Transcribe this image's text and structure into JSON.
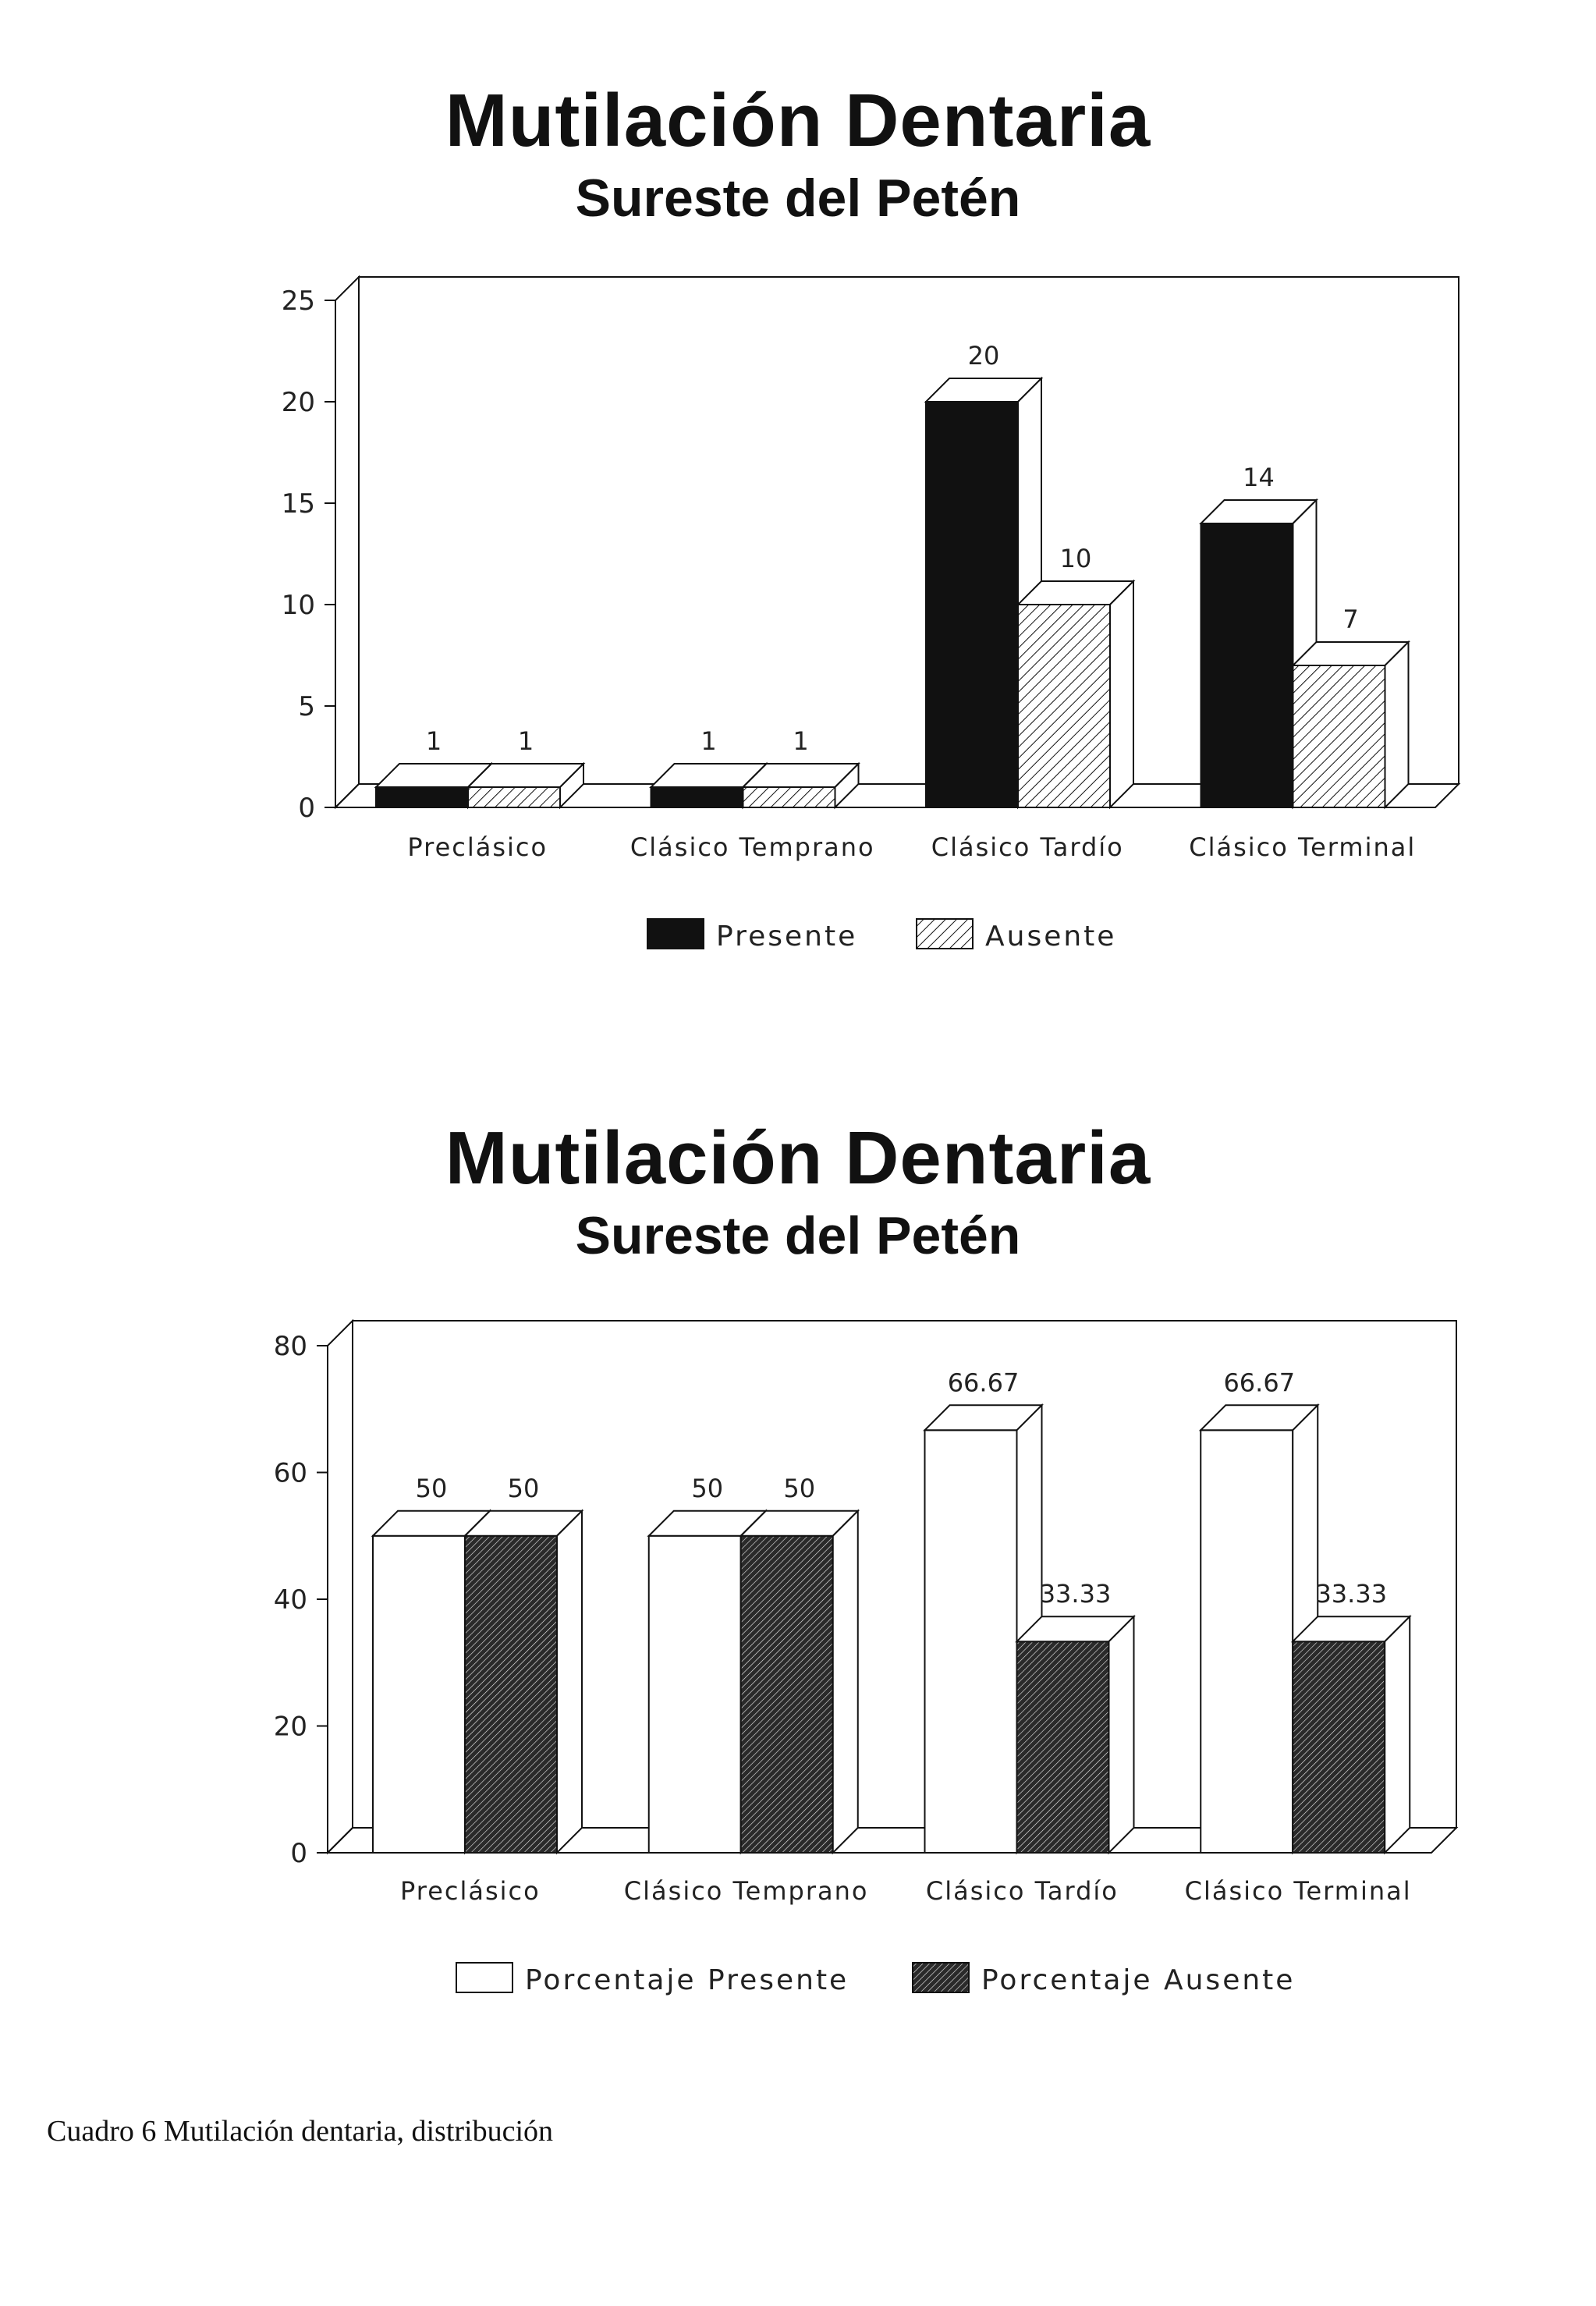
{
  "caption": "Cuadro 6 Mutilación dentaria, distribución",
  "colors": {
    "ink": "#111111",
    "present_fill": "#111111",
    "absent_fill": "#ffffff",
    "pct_present_fill": "#ffffff",
    "pct_absent_fill": "#333333"
  },
  "chart_data": [
    {
      "type": "bar",
      "title": "Mutilación Dentaria",
      "subtitle": "Sureste del Petén",
      "categories": [
        "Preclásico",
        "Clásico Temprano",
        "Clásico Tardío",
        "Clásico Terminal"
      ],
      "series": [
        {
          "name": "Presente",
          "values": [
            1,
            1,
            20,
            14
          ],
          "labels": [
            "1",
            "1",
            "20",
            "14"
          ]
        },
        {
          "name": "Ausente",
          "values": [
            1,
            1,
            10,
            7
          ],
          "labels": [
            "1",
            "1",
            "10",
            "7"
          ]
        }
      ],
      "yticks": [
        0,
        5,
        10,
        15,
        20,
        25
      ],
      "ylim": [
        0,
        25
      ],
      "legend": "bottom",
      "grid": false
    },
    {
      "type": "bar",
      "title": "Mutilación Dentaria",
      "subtitle": "Sureste del Petén",
      "categories": [
        "Preclásico",
        "Clásico Temprano",
        "Clásico Tardío",
        "Clásico Terminal"
      ],
      "series": [
        {
          "name": "Porcentaje Presente",
          "values": [
            50,
            50,
            66.67,
            66.67
          ],
          "labels": [
            "50",
            "50",
            "66.67",
            "66.67"
          ]
        },
        {
          "name": "Porcentaje Ausente",
          "values": [
            50,
            50,
            33.33,
            33.33
          ],
          "labels": [
            "50",
            "50",
            "33.33",
            "33.33"
          ]
        }
      ],
      "yticks": [
        0,
        20,
        40,
        60,
        80
      ],
      "ylim": [
        0,
        80
      ],
      "legend": "bottom",
      "grid": false
    }
  ]
}
